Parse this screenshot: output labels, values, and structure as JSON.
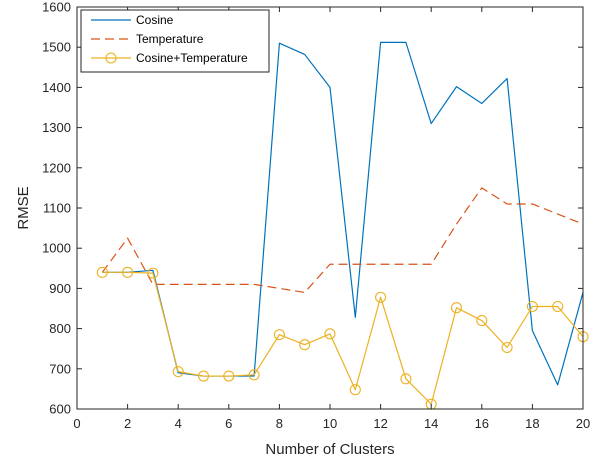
{
  "chart_data": {
    "type": "line",
    "xlabel": "Number of Clusters",
    "ylabel": "RMSE",
    "xlim": [
      0,
      20
    ],
    "ylim": [
      600,
      1600
    ],
    "xticks": [
      0,
      2,
      4,
      6,
      8,
      10,
      12,
      14,
      16,
      18,
      20
    ],
    "yticks": [
      600,
      700,
      800,
      900,
      1000,
      1100,
      1200,
      1300,
      1400,
      1500,
      1600
    ],
    "grid": false,
    "legend_position": "top-left",
    "x": [
      1,
      2,
      3,
      4,
      5,
      6,
      7,
      8,
      9,
      10,
      11,
      12,
      13,
      14,
      15,
      16,
      17,
      18,
      19,
      20
    ],
    "series": [
      {
        "name": "Cosine",
        "color": "#0072BD",
        "style": "solid",
        "marker": "none",
        "values": [
          940,
          940,
          945,
          690,
          682,
          682,
          682,
          1510,
          1482,
          1400,
          828,
          1512,
          1512,
          1310,
          1402,
          1360,
          1422,
          795,
          660,
          890
        ]
      },
      {
        "name": "Temperature",
        "color": "#D95319",
        "style": "dashed",
        "marker": "none",
        "values": [
          940,
          1025,
          910,
          910,
          910,
          910,
          910,
          900,
          890,
          960,
          960,
          960,
          960,
          960,
          1060,
          1150,
          1110,
          1110,
          1085,
          1060
        ]
      },
      {
        "name": "Cosine+Temperature",
        "color": "#EDB120",
        "style": "solid",
        "marker": "circle",
        "values": [
          940,
          940,
          938,
          693,
          682,
          682,
          685,
          785,
          760,
          787,
          648,
          878,
          675,
          612,
          852,
          820,
          753,
          855,
          855,
          780
        ]
      }
    ]
  }
}
